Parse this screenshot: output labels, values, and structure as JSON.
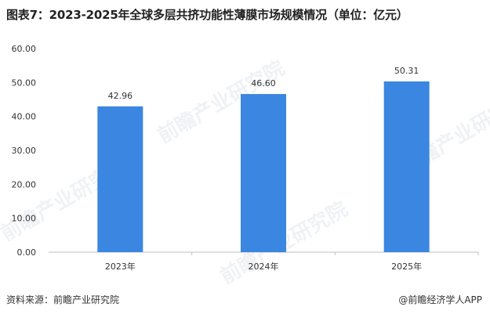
{
  "title": "图表7：2023-2025年全球多层共挤功能性薄膜市场规模情况（单位：亿元）",
  "watermark": "前瞻产业研究院",
  "source": "资料来源：前瞻产业研究院",
  "brand": "@前瞻经济学人APP",
  "colors": {
    "bar": "#3a86e0",
    "axis": "#bfbfbf",
    "label": "#333333"
  },
  "chart_data": {
    "type": "bar",
    "categories": [
      "2023年",
      "2024年",
      "2025年"
    ],
    "values": [
      42.96,
      46.6,
      50.31
    ],
    "value_labels": [
      "42.96",
      "46.60",
      "50.31"
    ],
    "yticks": [
      "0.00",
      "10.00",
      "20.00",
      "30.00",
      "40.00",
      "50.00",
      "60.00"
    ],
    "ylim": [
      0,
      60
    ],
    "grid": false
  }
}
